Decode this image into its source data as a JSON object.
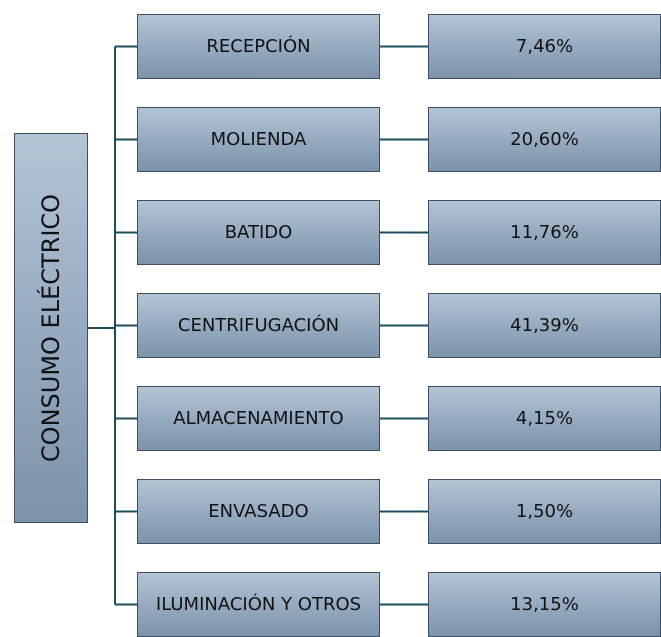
{
  "root": {
    "label": "CONSUMO ELÉCTRICO"
  },
  "nodes": [
    {
      "label": "RECEPCIÓN",
      "value": "7,46%"
    },
    {
      "label": "MOLIENDA",
      "value": "20,60%"
    },
    {
      "label": "BATIDO",
      "value": "11,76%"
    },
    {
      "label": "CENTRIFUGACIÓN",
      "value": "41,39%"
    },
    {
      "label": "ALMACENAMIENTO",
      "value": "4,15%"
    },
    {
      "label": "ENVASADO",
      "value": "1,50%"
    },
    {
      "label": "ILUMINACIÓN Y OTROS",
      "value": "13,15%"
    }
  ]
}
